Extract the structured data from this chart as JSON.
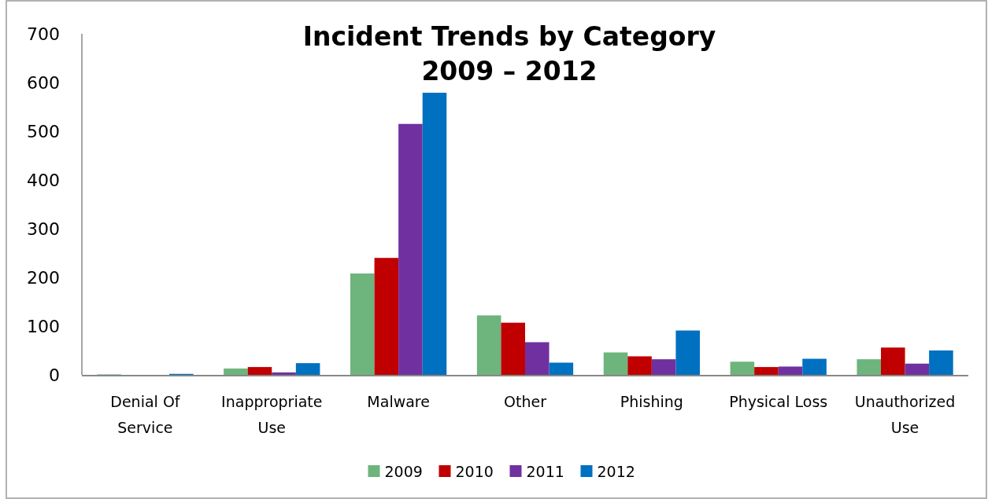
{
  "chart_data": {
    "type": "bar",
    "title": "Incident Trends by Category\n2009 – 2012",
    "categories": [
      "Denial Of Service",
      "Inappropriate Use",
      "Malware",
      "Other",
      "Phishing",
      "Physical Loss",
      "Unauthorized Use"
    ],
    "series": [
      {
        "name": "2009",
        "color": "#6db47d",
        "values": [
          1,
          13,
          208,
          122,
          46,
          27,
          32
        ]
      },
      {
        "name": "2010",
        "color": "#c00000",
        "values": [
          0,
          16,
          240,
          107,
          38,
          16,
          56
        ]
      },
      {
        "name": "2011",
        "color": "#7030a0",
        "values": [
          0,
          5,
          515,
          67,
          32,
          17,
          23
        ]
      },
      {
        "name": "2012",
        "color": "#0070c0",
        "values": [
          2,
          24,
          579,
          25,
          91,
          33,
          50
        ]
      }
    ],
    "ylim": [
      0,
      700
    ],
    "yticks": [
      0,
      100,
      200,
      300,
      400,
      500,
      600,
      700
    ],
    "grid": false,
    "legend": "bottom"
  }
}
